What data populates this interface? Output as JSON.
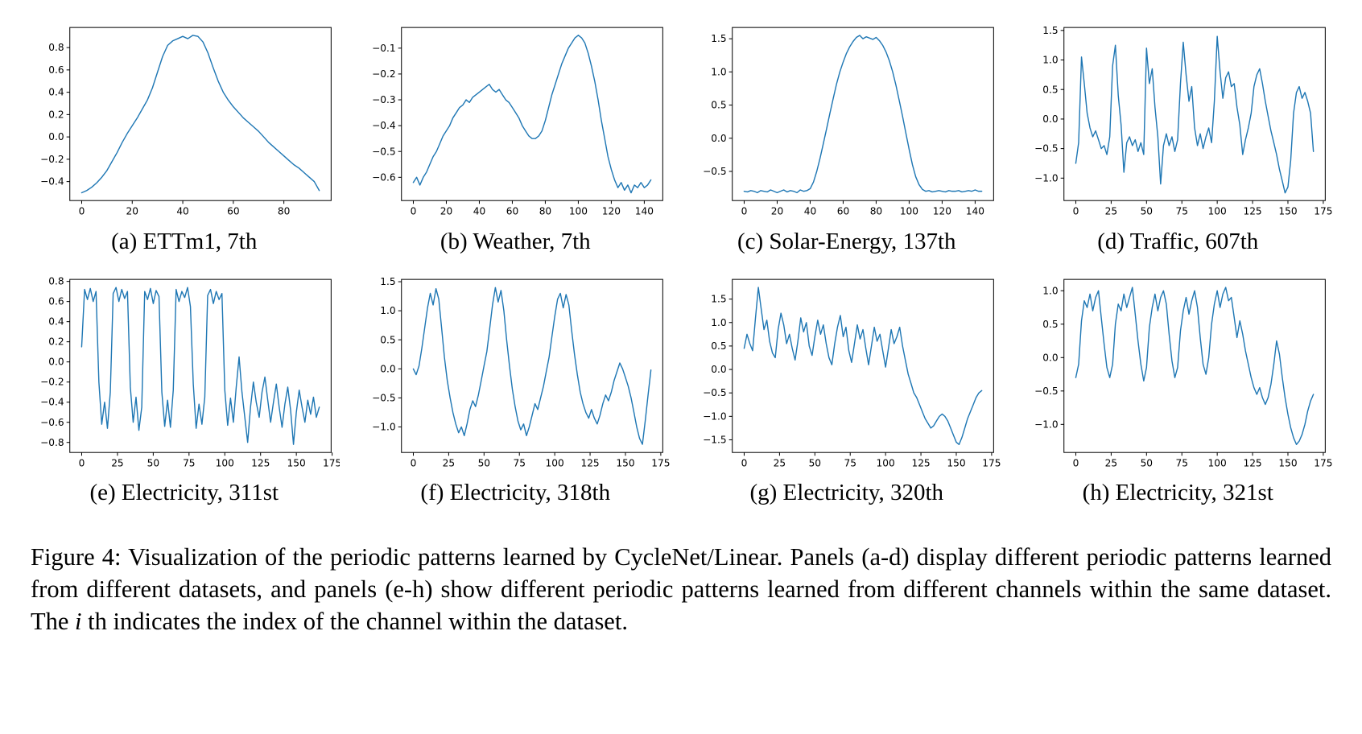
{
  "figure": {
    "caption_prefix": "Figure 4: Visualization of the periodic patterns learned by CycleNet/Linear. Panels (a-d) display different periodic patterns learned from different datasets, and panels (e-h) show different periodic patterns learned from different channels within the same dataset. The ",
    "caption_italic": "i",
    "caption_suffix": " th indicates the index of the channel within the dataset."
  },
  "line_color": "#1f77b4",
  "axis_color": "#000000",
  "chart_data": [
    {
      "type": "line",
      "title": "(a) ETTm1, 7th",
      "x0": 0,
      "dx": 2,
      "xlim": [
        -4.7,
        98.7
      ],
      "ylim": [
        -0.57,
        0.98
      ],
      "xticks": [
        0,
        20,
        40,
        60,
        80
      ],
      "yticks": [
        -0.4,
        -0.2,
        0.0,
        0.2,
        0.4,
        0.6,
        0.8
      ],
      "y": [
        -0.5,
        -0.48,
        -0.45,
        -0.41,
        -0.36,
        -0.3,
        -0.22,
        -0.14,
        -0.05,
        0.03,
        0.1,
        0.17,
        0.25,
        0.33,
        0.44,
        0.58,
        0.72,
        0.82,
        0.86,
        0.88,
        0.9,
        0.88,
        0.91,
        0.9,
        0.85,
        0.75,
        0.62,
        0.5,
        0.4,
        0.33,
        0.27,
        0.22,
        0.17,
        0.13,
        0.09,
        0.05,
        0.0,
        -0.05,
        -0.09,
        -0.13,
        -0.17,
        -0.21,
        -0.25,
        -0.28,
        -0.32,
        -0.36,
        -0.4,
        -0.48
      ]
    },
    {
      "type": "line",
      "title": "(b) Weather, 7th",
      "x0": 0,
      "dx": 2,
      "xlim": [
        -7.2,
        151.2
      ],
      "ylim": [
        -0.69,
        -0.02
      ],
      "xticks": [
        0,
        20,
        40,
        60,
        80,
        100,
        120,
        140
      ],
      "yticks": [
        -0.6,
        -0.5,
        -0.4,
        -0.3,
        -0.2,
        -0.1
      ],
      "y": [
        -0.62,
        -0.6,
        -0.63,
        -0.6,
        -0.58,
        -0.55,
        -0.52,
        -0.5,
        -0.47,
        -0.44,
        -0.42,
        -0.4,
        -0.37,
        -0.35,
        -0.33,
        -0.32,
        -0.3,
        -0.31,
        -0.29,
        -0.28,
        -0.27,
        -0.26,
        -0.25,
        -0.24,
        -0.26,
        -0.27,
        -0.26,
        -0.28,
        -0.3,
        -0.31,
        -0.33,
        -0.35,
        -0.37,
        -0.4,
        -0.42,
        -0.44,
        -0.45,
        -0.45,
        -0.44,
        -0.42,
        -0.38,
        -0.33,
        -0.28,
        -0.24,
        -0.2,
        -0.16,
        -0.13,
        -0.1,
        -0.08,
        -0.06,
        -0.05,
        -0.06,
        -0.08,
        -0.12,
        -0.17,
        -0.23,
        -0.3,
        -0.38,
        -0.45,
        -0.52,
        -0.57,
        -0.61,
        -0.64,
        -0.62,
        -0.65,
        -0.63,
        -0.66,
        -0.63,
        -0.64,
        -0.62,
        -0.64,
        -0.63,
        -0.61
      ]
    },
    {
      "type": "line",
      "title": "(c) Solar-Energy, 137th",
      "x0": 0,
      "dx": 2,
      "xlim": [
        -7.2,
        151.2
      ],
      "ylim": [
        -0.94,
        1.67
      ],
      "xticks": [
        0,
        20,
        40,
        60,
        80,
        100,
        120,
        140
      ],
      "yticks": [
        -0.5,
        0.0,
        0.5,
        1.0,
        1.5
      ],
      "y": [
        -0.8,
        -0.81,
        -0.79,
        -0.8,
        -0.82,
        -0.79,
        -0.8,
        -0.81,
        -0.78,
        -0.8,
        -0.82,
        -0.8,
        -0.78,
        -0.81,
        -0.79,
        -0.8,
        -0.82,
        -0.78,
        -0.8,
        -0.79,
        -0.76,
        -0.66,
        -0.5,
        -0.3,
        -0.08,
        0.15,
        0.38,
        0.6,
        0.82,
        1.0,
        1.15,
        1.28,
        1.38,
        1.46,
        1.52,
        1.55,
        1.5,
        1.53,
        1.51,
        1.49,
        1.52,
        1.47,
        1.4,
        1.3,
        1.17,
        1.0,
        0.8,
        0.57,
        0.33,
        0.08,
        -0.17,
        -0.4,
        -0.58,
        -0.7,
        -0.77,
        -0.8,
        -0.79,
        -0.81,
        -0.8,
        -0.79,
        -0.8,
        -0.81,
        -0.79,
        -0.8,
        -0.8,
        -0.79,
        -0.81,
        -0.8,
        -0.79,
        -0.8,
        -0.78,
        -0.8,
        -0.8
      ]
    },
    {
      "type": "line",
      "title": "(d) Traffic, 607th",
      "x0": 0,
      "dx": 2,
      "xlim": [
        -8.4,
        176.4
      ],
      "ylim": [
        -1.38,
        1.55
      ],
      "xticks": [
        0,
        25,
        50,
        75,
        100,
        125,
        150,
        175
      ],
      "yticks": [
        -1.0,
        -0.5,
        0.0,
        0.5,
        1.0,
        1.5
      ],
      "y": [
        -0.75,
        -0.4,
        1.05,
        0.6,
        0.1,
        -0.15,
        -0.3,
        -0.2,
        -0.35,
        -0.5,
        -0.45,
        -0.6,
        -0.3,
        0.9,
        1.25,
        0.4,
        -0.1,
        -0.9,
        -0.4,
        -0.3,
        -0.45,
        -0.35,
        -0.55,
        -0.4,
        -0.6,
        1.2,
        0.6,
        0.85,
        0.2,
        -0.3,
        -1.1,
        -0.45,
        -0.25,
        -0.45,
        -0.3,
        -0.55,
        -0.35,
        0.6,
        1.3,
        0.75,
        0.3,
        0.55,
        -0.15,
        -0.45,
        -0.25,
        -0.5,
        -0.3,
        -0.15,
        -0.4,
        0.3,
        1.4,
        0.8,
        0.35,
        0.7,
        0.8,
        0.55,
        0.6,
        0.2,
        -0.1,
        -0.6,
        -0.35,
        -0.15,
        0.1,
        0.55,
        0.75,
        0.85,
        0.6,
        0.3,
        0.05,
        -0.2,
        -0.4,
        -0.6,
        -0.85,
        -1.05,
        -1.25,
        -1.15,
        -0.7,
        0.1,
        0.45,
        0.55,
        0.35,
        0.45,
        0.3,
        0.1,
        -0.55
      ]
    },
    {
      "type": "line",
      "title": "(e) Electricity, 311st",
      "x0": 0,
      "dx": 2,
      "xlim": [
        -8.3,
        174.3
      ],
      "ylim": [
        -0.9,
        0.82
      ],
      "xticks": [
        0,
        25,
        50,
        75,
        100,
        125,
        150,
        175
      ],
      "yticks": [
        -0.8,
        -0.6,
        -0.4,
        -0.2,
        0.0,
        0.2,
        0.4,
        0.6,
        0.8
      ],
      "y": [
        0.15,
        0.72,
        0.62,
        0.73,
        0.6,
        0.7,
        -0.2,
        -0.62,
        -0.4,
        -0.66,
        -0.3,
        0.68,
        0.74,
        0.6,
        0.72,
        0.63,
        0.7,
        -0.25,
        -0.6,
        -0.35,
        -0.68,
        -0.45,
        0.7,
        0.62,
        0.73,
        0.58,
        0.71,
        0.65,
        -0.3,
        -0.64,
        -0.38,
        -0.65,
        -0.28,
        0.72,
        0.6,
        0.7,
        0.64,
        0.74,
        0.55,
        -0.22,
        -0.66,
        -0.42,
        -0.62,
        -0.35,
        0.66,
        0.72,
        0.58,
        0.7,
        0.62,
        0.68,
        -0.28,
        -0.63,
        -0.36,
        -0.6,
        -0.25,
        0.05,
        -0.3,
        -0.55,
        -0.8,
        -0.45,
        -0.2,
        -0.4,
        -0.55,
        -0.3,
        -0.15,
        -0.38,
        -0.6,
        -0.4,
        -0.22,
        -0.45,
        -0.65,
        -0.42,
        -0.25,
        -0.48,
        -0.82,
        -0.5,
        -0.28,
        -0.45,
        -0.6,
        -0.38,
        -0.52,
        -0.35,
        -0.55,
        -0.45
      ]
    },
    {
      "type": "line",
      "title": "(f) Electricity, 318th",
      "x0": 0,
      "dx": 2,
      "xlim": [
        -8.4,
        176.4
      ],
      "ylim": [
        -1.44,
        1.54
      ],
      "xticks": [
        0,
        25,
        50,
        75,
        100,
        125,
        150,
        175
      ],
      "yticks": [
        -1.0,
        -0.5,
        0.0,
        0.5,
        1.0,
        1.5
      ],
      "y": [
        0.0,
        -0.1,
        0.05,
        0.35,
        0.7,
        1.05,
        1.3,
        1.1,
        1.38,
        1.2,
        0.7,
        0.2,
        -0.2,
        -0.5,
        -0.75,
        -0.95,
        -1.1,
        -1.0,
        -1.15,
        -0.95,
        -0.7,
        -0.55,
        -0.65,
        -0.45,
        -0.2,
        0.05,
        0.3,
        0.7,
        1.1,
        1.4,
        1.15,
        1.35,
        1.0,
        0.5,
        0.05,
        -0.35,
        -0.65,
        -0.9,
        -1.05,
        -0.95,
        -1.15,
        -1.0,
        -0.8,
        -0.6,
        -0.7,
        -0.5,
        -0.3,
        -0.05,
        0.2,
        0.55,
        0.9,
        1.2,
        1.3,
        1.05,
        1.28,
        1.1,
        0.65,
        0.25,
        -0.1,
        -0.4,
        -0.6,
        -0.75,
        -0.85,
        -0.7,
        -0.85,
        -0.95,
        -0.8,
        -0.6,
        -0.45,
        -0.55,
        -0.4,
        -0.2,
        -0.05,
        0.1,
        0.0,
        -0.15,
        -0.3,
        -0.5,
        -0.75,
        -1.0,
        -1.2,
        -1.3,
        -0.9,
        -0.45,
        -0.02
      ]
    },
    {
      "type": "line",
      "title": "(g) Electricity, 320th",
      "x0": 0,
      "dx": 2,
      "xlim": [
        -8.4,
        176.4
      ],
      "ylim": [
        -1.77,
        1.92
      ],
      "xticks": [
        0,
        25,
        50,
        75,
        100,
        125,
        150,
        175
      ],
      "yticks": [
        -1.5,
        -1.0,
        -0.5,
        0.0,
        0.5,
        1.0,
        1.5
      ],
      "y": [
        0.45,
        0.75,
        0.55,
        0.4,
        1.1,
        1.75,
        1.3,
        0.85,
        1.05,
        0.6,
        0.35,
        0.25,
        0.85,
        1.2,
        0.95,
        0.55,
        0.75,
        0.45,
        0.2,
        0.6,
        1.1,
        0.8,
        1.0,
        0.5,
        0.3,
        0.7,
        1.05,
        0.75,
        0.95,
        0.55,
        0.25,
        0.1,
        0.55,
        0.9,
        1.15,
        0.7,
        0.9,
        0.4,
        0.15,
        0.55,
        0.95,
        0.65,
        0.85,
        0.45,
        0.1,
        0.5,
        0.9,
        0.6,
        0.75,
        0.4,
        0.05,
        0.45,
        0.85,
        0.55,
        0.7,
        0.9,
        0.5,
        0.2,
        -0.1,
        -0.3,
        -0.5,
        -0.6,
        -0.75,
        -0.9,
        -1.05,
        -1.15,
        -1.25,
        -1.2,
        -1.1,
        -1.0,
        -0.95,
        -1.0,
        -1.1,
        -1.25,
        -1.4,
        -1.55,
        -1.6,
        -1.45,
        -1.25,
        -1.05,
        -0.9,
        -0.75,
        -0.6,
        -0.5,
        -0.45
      ]
    },
    {
      "type": "line",
      "title": "(h) Electricity, 321st",
      "x0": 0,
      "dx": 2,
      "xlim": [
        -8.4,
        176.4
      ],
      "ylim": [
        -1.42,
        1.17
      ],
      "xticks": [
        0,
        25,
        50,
        75,
        100,
        125,
        150,
        175
      ],
      "yticks": [
        -1.0,
        -0.5,
        0.0,
        0.5,
        1.0
      ],
      "y": [
        -0.3,
        -0.1,
        0.55,
        0.85,
        0.75,
        0.95,
        0.7,
        0.9,
        1.0,
        0.6,
        0.2,
        -0.15,
        -0.3,
        -0.1,
        0.5,
        0.8,
        0.7,
        0.95,
        0.75,
        0.9,
        1.05,
        0.65,
        0.25,
        -0.1,
        -0.35,
        -0.15,
        0.45,
        0.75,
        0.95,
        0.7,
        0.9,
        1.0,
        0.8,
        0.35,
        -0.05,
        -0.3,
        -0.15,
        0.4,
        0.7,
        0.9,
        0.65,
        0.85,
        1.0,
        0.75,
        0.3,
        -0.1,
        -0.25,
        0.0,
        0.5,
        0.8,
        1.0,
        0.75,
        0.95,
        1.05,
        0.85,
        0.9,
        0.6,
        0.3,
        0.55,
        0.35,
        0.1,
        -0.1,
        -0.3,
        -0.45,
        -0.55,
        -0.45,
        -0.6,
        -0.7,
        -0.6,
        -0.4,
        -0.1,
        0.25,
        0.05,
        -0.3,
        -0.6,
        -0.85,
        -1.05,
        -1.2,
        -1.3,
        -1.25,
        -1.15,
        -1.0,
        -0.8,
        -0.65,
        -0.55
      ]
    }
  ]
}
